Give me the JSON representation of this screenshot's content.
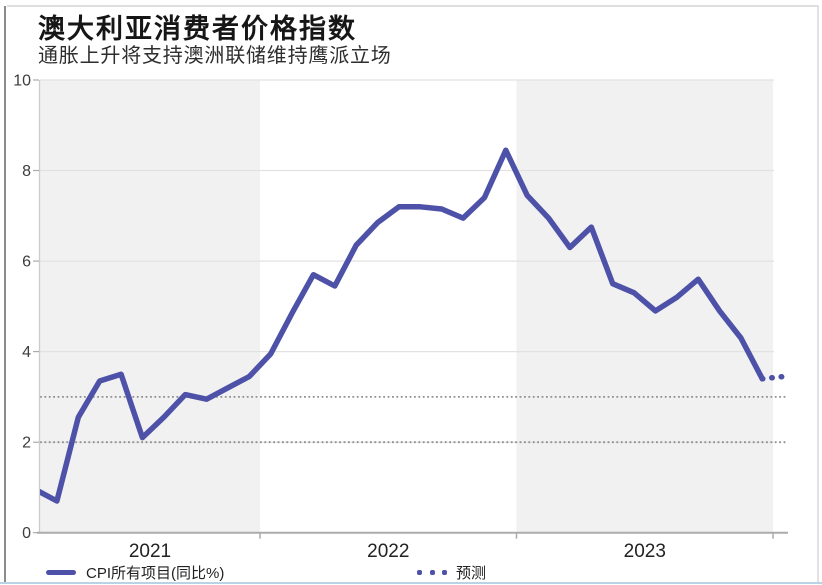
{
  "header": {
    "title": "澳大利亚消费者价格指数",
    "subtitle": "通胀上升将支持澳洲联储维持鹰派立场"
  },
  "legend": {
    "series_label": "CPI所有项目(同比%)",
    "forecast_label": "预测"
  },
  "colors": {
    "line": "#4d52a8",
    "band": "#f1f1f1",
    "gridline": "#e2e2e2",
    "dashed_target": "#8f8f8f",
    "axis": "#ababab",
    "y_axis": "#cccccc"
  },
  "chart_data": {
    "type": "line",
    "title": "澳大利亚消费者价格指数",
    "subtitle": "通胀上升将支持澳洲联储维持鹰派立场",
    "ylabel": "",
    "xlabel": "",
    "ylim": [
      0,
      10
    ],
    "yticks": [
      0,
      2,
      4,
      6,
      8,
      10
    ],
    "x_year_labels": [
      "2021",
      "2022",
      "2023"
    ],
    "reference_lines": [
      2,
      3
    ],
    "grid": true,
    "legend_position": "bottom",
    "series": [
      {
        "name": "CPI所有项目(同比%)",
        "style": "solid",
        "x": [
          "2021-02",
          "2021-03",
          "2021-04",
          "2021-05",
          "2021-06",
          "2021-07",
          "2021-08",
          "2021-09",
          "2021-10",
          "2021-11",
          "2021-12",
          "2022-01",
          "2022-02",
          "2022-03",
          "2022-04",
          "2022-05",
          "2022-06",
          "2022-07",
          "2022-08",
          "2022-09",
          "2022-10",
          "2022-11",
          "2022-12",
          "2023-01",
          "2023-02",
          "2023-03",
          "2023-04",
          "2023-05",
          "2023-06",
          "2023-07",
          "2023-08",
          "2023-09",
          "2023-10",
          "2023-11",
          "2023-12"
        ],
        "values": [
          0.95,
          0.7,
          2.55,
          3.35,
          3.5,
          2.1,
          2.55,
          3.05,
          2.95,
          3.2,
          3.45,
          3.95,
          4.85,
          5.7,
          5.45,
          6.35,
          6.85,
          7.2,
          7.2,
          7.15,
          6.95,
          7.4,
          8.45,
          7.45,
          6.95,
          6.3,
          6.75,
          5.5,
          5.3,
          4.9,
          5.2,
          5.6,
          4.9,
          4.3,
          3.4
        ]
      },
      {
        "name": "预测",
        "style": "dotted",
        "x": [
          "2024-01"
        ],
        "values": [
          3.45
        ]
      }
    ]
  }
}
